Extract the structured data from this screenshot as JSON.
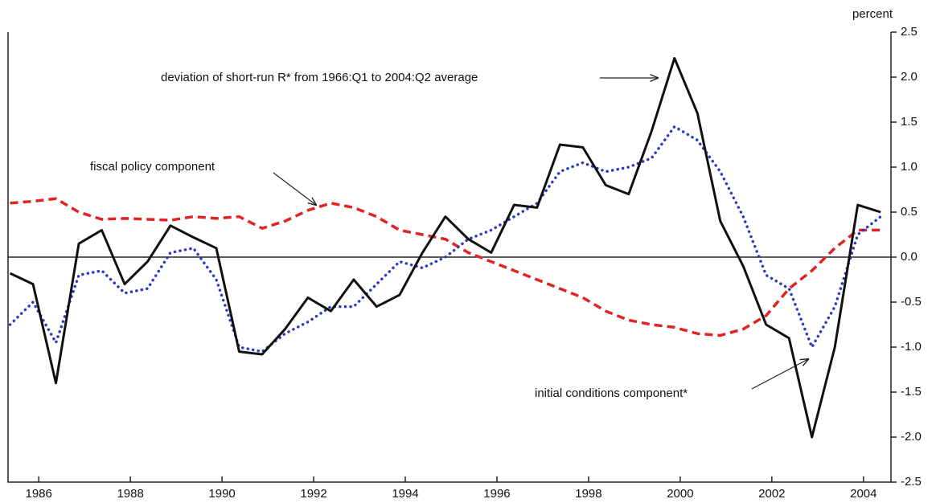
{
  "chart_data": {
    "type": "line",
    "y_axis_label": "percent",
    "x": [
      1985.375,
      1985.875,
      1986.375,
      1986.875,
      1987.375,
      1987.875,
      1988.375,
      1988.875,
      1989.375,
      1989.875,
      1990.375,
      1990.875,
      1991.375,
      1991.875,
      1992.375,
      1992.875,
      1993.375,
      1993.875,
      1994.375,
      1994.875,
      1995.375,
      1995.875,
      1996.375,
      1996.875,
      1997.375,
      1997.875,
      1998.375,
      1998.875,
      1999.375,
      1999.875,
      2000.375,
      2000.875,
      2001.375,
      2001.875,
      2002.375,
      2002.875,
      2003.375,
      2003.875,
      2004.375
    ],
    "series": [
      {
        "name": "deviation of short-run R* from 1966:Q1 to 2004:Q2 average",
        "color": "#111111",
        "style": "solid",
        "values": [
          -0.18,
          -0.3,
          -1.4,
          0.15,
          0.3,
          -0.3,
          -0.05,
          0.35,
          0.22,
          0.1,
          -1.05,
          -1.08,
          -0.8,
          -0.45,
          -0.6,
          -0.25,
          -0.55,
          -0.42,
          0.05,
          0.45,
          0.2,
          0.05,
          0.58,
          0.55,
          1.25,
          1.22,
          0.8,
          0.7,
          1.4,
          2.21,
          1.6,
          0.4,
          -0.1,
          -0.75,
          -0.9,
          -2.0,
          -1.0,
          0.58,
          0.5
        ]
      },
      {
        "name": "initial conditions component*",
        "color": "#2b3bc0",
        "style": "dotted",
        "values": [
          -0.75,
          -0.5,
          -0.95,
          -0.2,
          -0.15,
          -0.4,
          -0.35,
          0.05,
          0.1,
          -0.25,
          -1.0,
          -1.05,
          -0.85,
          -0.72,
          -0.55,
          -0.55,
          -0.3,
          -0.05,
          -0.12,
          0.0,
          0.2,
          0.3,
          0.45,
          0.6,
          0.95,
          1.05,
          0.95,
          1.0,
          1.1,
          1.45,
          1.3,
          0.95,
          0.45,
          -0.2,
          -0.35,
          -1.0,
          -0.55,
          0.25,
          0.45
        ]
      },
      {
        "name": "fiscal policy component",
        "color": "#e02424",
        "style": "dashed",
        "values": [
          0.6,
          0.62,
          0.65,
          0.5,
          0.42,
          0.43,
          0.42,
          0.41,
          0.45,
          0.43,
          0.45,
          0.32,
          0.4,
          0.52,
          0.6,
          0.55,
          0.45,
          0.3,
          0.25,
          0.2,
          0.05,
          -0.05,
          -0.15,
          -0.25,
          -0.35,
          -0.45,
          -0.6,
          -0.7,
          -0.75,
          -0.78,
          -0.85,
          -0.87,
          -0.8,
          -0.65,
          -0.35,
          -0.15,
          0.1,
          0.3,
          0.3
        ]
      }
    ],
    "xlim": [
      1985.33,
      2004.6
    ],
    "xticks": [
      1986,
      1988,
      1990,
      1992,
      1994,
      1996,
      1998,
      2000,
      2002,
      2004
    ],
    "ylim": [
      -2.5,
      2.5
    ],
    "yticks": [
      2.5,
      {
        "value": 2,
        "label": "2.0"
      },
      1.5,
      {
        "value": 1,
        "label": "1.0"
      },
      0.5,
      {
        "value": 0,
        "label": "0.0"
      },
      -0.5,
      {
        "value": -1,
        "label": "-1.0"
      },
      -1.5,
      {
        "value": -2,
        "label": "-2.0"
      },
      -2.5
    ],
    "zero_line": true
  }
}
